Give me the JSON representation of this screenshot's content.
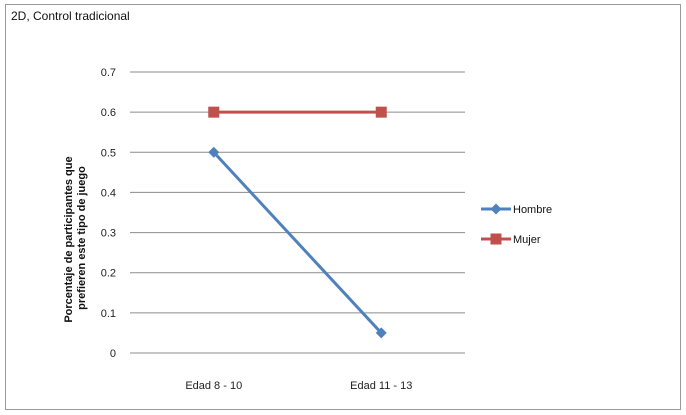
{
  "chart_data": {
    "type": "line",
    "title": "2D, Control tradicional",
    "categories": [
      "Edad 8 - 10",
      "Edad 11 - 13"
    ],
    "ylabel_lines": [
      "Porcentaje de participantes que",
      "prefieren este tipo de juego"
    ],
    "ylim": [
      0,
      0.7
    ],
    "yticks": [
      "0",
      "0.1",
      "0.2",
      "0.3",
      "0.4",
      "0.5",
      "0.6",
      "0.7"
    ],
    "grid": true,
    "legend_position": "right",
    "series": [
      {
        "name": "Hombre",
        "values": [
          0.5,
          0.05
        ],
        "color": "#4f81bd",
        "marker": "diamond"
      },
      {
        "name": "Mujer",
        "values": [
          0.6,
          0.6
        ],
        "color": "#c0504d",
        "marker": "square"
      }
    ]
  }
}
